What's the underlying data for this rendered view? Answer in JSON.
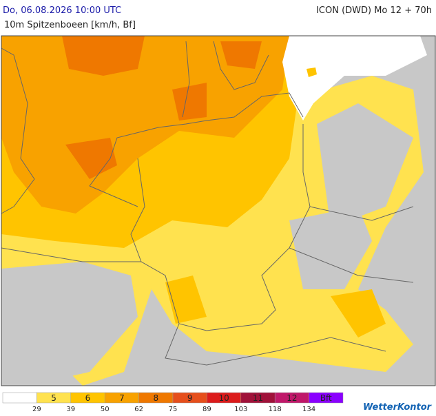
{
  "header": {
    "left_title": "Do, 06.08.2026 10:00 UTC",
    "subtitle": "10m Spitzenboeen [km/h, Bf]",
    "right_title": "ICON (DWD) Mo 12 + 70h"
  },
  "legend": {
    "colors": [
      "#ffffff",
      "#ffe24f",
      "#ffc400",
      "#f8a200",
      "#ef7800",
      "#e64f1c",
      "#dc1c1c",
      "#a0123a",
      "#c0186a",
      "#8a00ff"
    ],
    "labels": [
      "5",
      "6",
      "7",
      "8",
      "9",
      "10",
      "11",
      "12",
      "Bft"
    ],
    "thresholds": [
      29,
      39,
      50,
      62,
      75,
      89,
      103,
      118,
      134
    ]
  },
  "logo": "WetterKontor"
}
